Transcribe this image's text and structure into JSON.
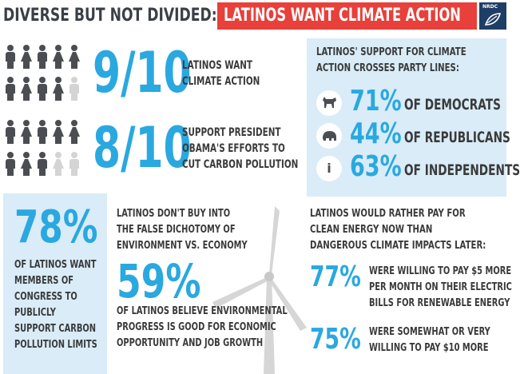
{
  "header": {
    "title_part1": "DIVERSE BUT NOT DIVIDED:",
    "title_part2": "LATINOS WANT CLIMATE ACTION",
    "logo_text": "NRDC"
  },
  "stat1": {
    "fraction": "9/10",
    "label_lines": [
      "LATINOS WANT",
      "CLIMATE ACTION"
    ],
    "filled": 9,
    "total": 10
  },
  "stat2": {
    "fraction": "8/10",
    "label_lines": [
      "SUPPORT PRESIDENT",
      "OBAMA'S EFFORTS TO",
      "CUT CARBON POLLUTION"
    ],
    "filled": 8,
    "total": 10
  },
  "party": {
    "title_lines": [
      "LATINOS' SUPPORT FOR CLIMATE",
      "ACTION CROSSES PARTY LINES:"
    ],
    "rows": [
      {
        "icon": "donkey-icon",
        "pct": "71%",
        "label": "OF DEMOCRATS"
      },
      {
        "icon": "elephant-icon",
        "pct": "44%",
        "label": "OF REPUBLICANS"
      },
      {
        "icon": "info-icon",
        "pct": "63%",
        "label": "OF INDEPENDENTS"
      }
    ]
  },
  "congress": {
    "pct": "78%",
    "lines": [
      "OF LATINOS WANT",
      "MEMBERS OF",
      "CONGRESS TO",
      "PUBLICLY",
      "SUPPORT CARBON",
      "POLLUTION LIMITS"
    ]
  },
  "economy": {
    "intro_lines": [
      "LATINOS DON'T BUY INTO",
      "THE FALSE DICHOTOMY OF",
      "ENVIRONMENT VS. ECONOMY"
    ],
    "pct": "59%",
    "lines": [
      "OF LATINOS BELIEVE ENVIRONMENTAL",
      "PROGRESS IS GOOD FOR ECONOMIC",
      "OPPORTUNITY AND JOB GROWTH"
    ]
  },
  "pay": {
    "title_lines": [
      "LATINOS WOULD RATHER PAY FOR",
      "CLEAN ENERGY NOW THAN",
      "DANGEROUS CLIMATE IMPACTS LATER:"
    ],
    "items": [
      {
        "pct": "77%",
        "lines": [
          "WERE WILLING TO PAY $5 MORE",
          "PER MONTH ON THEIR ELECTRIC",
          "BILLS FOR RENEWABLE ENERGY"
        ]
      },
      {
        "pct": "75%",
        "lines": [
          "WERE SOMEWHAT OR VERY",
          "WILLING TO PAY $10 MORE"
        ]
      }
    ]
  },
  "colors": {
    "accent": "#2aa8e0",
    "red": "#e8403a",
    "panel": "#d9ecf7",
    "dark": "#3b3f46",
    "navy": "#1f3e66"
  }
}
